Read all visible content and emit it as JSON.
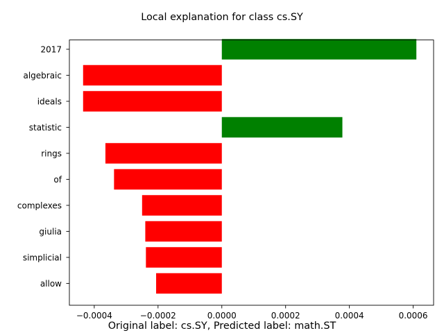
{
  "chart_data": {
    "type": "bar",
    "orientation": "horizontal",
    "title": "Local explanation for class cs.SY",
    "xlabel": "",
    "ylabel": "",
    "categories": [
      "2017",
      "algebraic",
      "ideals",
      "statistic",
      "rings",
      "of",
      "complexes",
      "giulia",
      "simplicial",
      "allow"
    ],
    "values": [
      0.00061,
      -0.000435,
      -0.000435,
      0.000378,
      -0.000365,
      -0.000338,
      -0.00025,
      -0.00024,
      -0.000238,
      -0.000206
    ],
    "colors": [
      "#008000",
      "#ff0000",
      "#ff0000",
      "#008000",
      "#ff0000",
      "#ff0000",
      "#ff0000",
      "#ff0000",
      "#ff0000",
      "#ff0000"
    ],
    "positive_color": "#008000",
    "negative_color": "#ff0000",
    "xlim": [
      -0.000478,
      0.000664
    ],
    "xticks": [
      -0.0004,
      -0.0002,
      0.0,
      0.0002,
      0.0004,
      0.0006
    ],
    "xtick_labels": [
      "−0.0004",
      "−0.0002",
      "0.0000",
      "0.0002",
      "0.0004",
      "0.0006"
    ],
    "grid": false,
    "legend": "none",
    "footer": "Original label: cs.SY, Predicted label: math.ST"
  }
}
